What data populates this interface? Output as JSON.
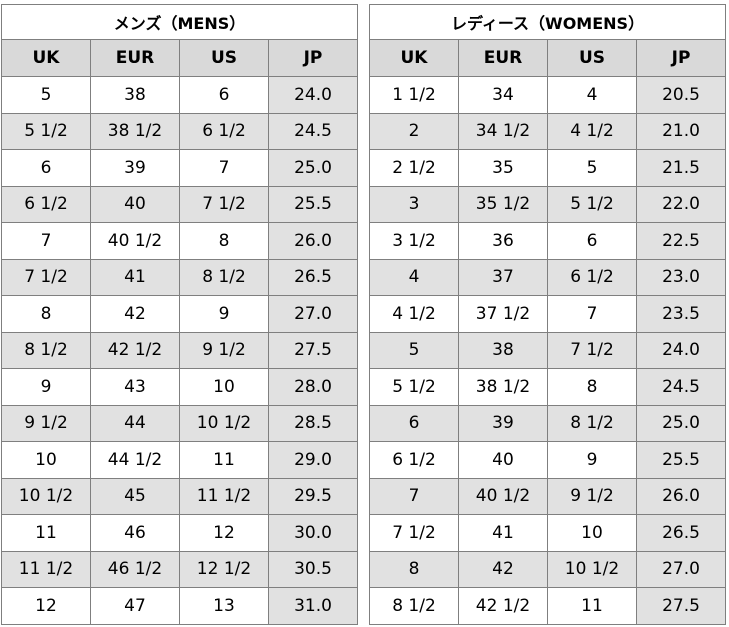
{
  "mens": {
    "title": "メンズ（MENS）",
    "headers": [
      "UK",
      "EUR",
      "US",
      "JP"
    ],
    "rows": [
      [
        "5",
        "38",
        "6",
        "24.0"
      ],
      [
        "5 1/2",
        "38 1/2",
        "6 1/2",
        "24.5"
      ],
      [
        "6",
        "39",
        "7",
        "25.0"
      ],
      [
        "6 1/2",
        "40",
        "7 1/2",
        "25.5"
      ],
      [
        "7",
        "40 1/2",
        "8",
        "26.0"
      ],
      [
        "7 1/2",
        "41",
        "8 1/2",
        "26.5"
      ],
      [
        "8",
        "42",
        "9",
        "27.0"
      ],
      [
        "8 1/2",
        "42 1/2",
        "9 1/2",
        "27.5"
      ],
      [
        "9",
        "43",
        "10",
        "28.0"
      ],
      [
        "9 1/2",
        "44",
        "10 1/2",
        "28.5"
      ],
      [
        "10",
        "44 1/2",
        "11",
        "29.0"
      ],
      [
        "10 1/2",
        "45",
        "11 1/2",
        "29.5"
      ],
      [
        "11",
        "46",
        "12",
        "30.0"
      ],
      [
        "11 1/2",
        "46 1/2",
        "12 1/2",
        "30.5"
      ],
      [
        "12",
        "47",
        "13",
        "31.0"
      ]
    ]
  },
  "womens": {
    "title": "レディース（WOMENS）",
    "headers": [
      "UK",
      "EUR",
      "US",
      "JP"
    ],
    "rows": [
      [
        "1 1/2",
        "34",
        "4",
        "20.5"
      ],
      [
        "2",
        "34 1/2",
        "4 1/2",
        "21.0"
      ],
      [
        "2 1/2",
        "35",
        "5",
        "21.5"
      ],
      [
        "3",
        "35 1/2",
        "5 1/2",
        "22.0"
      ],
      [
        "3 1/2",
        "36",
        "6",
        "22.5"
      ],
      [
        "4",
        "37",
        "6 1/2",
        "23.0"
      ],
      [
        "4 1/2",
        "37 1/2",
        "7",
        "23.5"
      ],
      [
        "5",
        "38",
        "7 1/2",
        "24.0"
      ],
      [
        "5 1/2",
        "38 1/2",
        "8",
        "24.5"
      ],
      [
        "6",
        "39",
        "8 1/2",
        "25.0"
      ],
      [
        "6 1/2",
        "40",
        "9",
        "25.5"
      ],
      [
        "7",
        "40 1/2",
        "9 1/2",
        "26.0"
      ],
      [
        "7 1/2",
        "41",
        "10",
        "26.5"
      ],
      [
        "8",
        "42",
        "10 1/2",
        "27.0"
      ],
      [
        "8 1/2",
        "42 1/2",
        "11",
        "27.5"
      ]
    ]
  }
}
